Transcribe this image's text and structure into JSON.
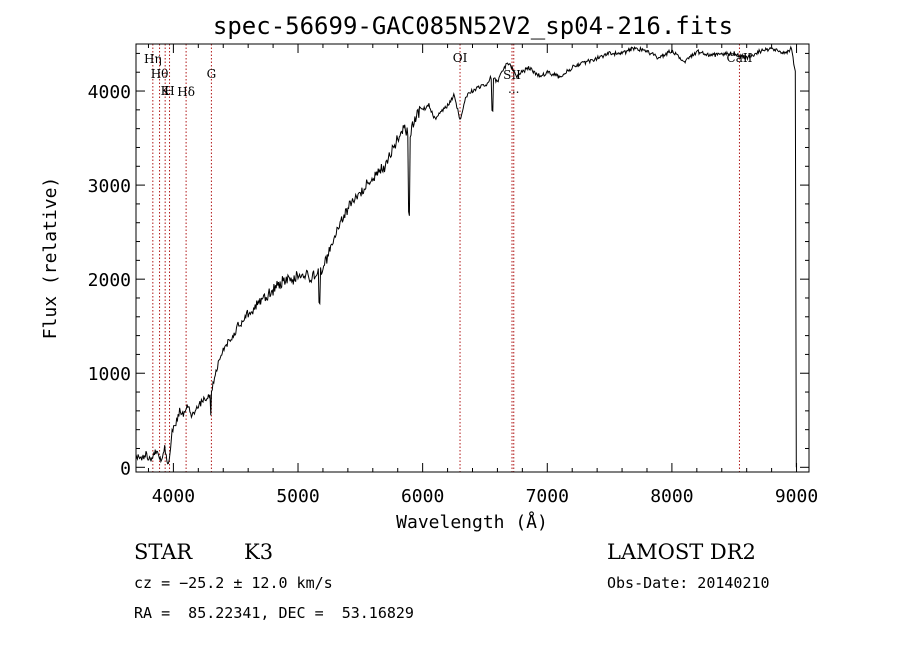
{
  "chart_data": {
    "type": "line",
    "title": "spec-56699-GAC085N52V2_sp04-216.fits",
    "xlabel": "Wavelength (Å)",
    "ylabel": "Flux (relative)",
    "xlim": [
      3700,
      9100
    ],
    "ylim": [
      -50,
      4500
    ],
    "x_ticks": [
      4000,
      5000,
      6000,
      7000,
      8000,
      9000
    ],
    "y_ticks": [
      0,
      1000,
      2000,
      3000,
      4000
    ],
    "grid": false,
    "series": [
      {
        "x": [
          3700,
          3740,
          3780,
          3820,
          3860,
          3900,
          3930,
          3960,
          3990,
          4020,
          4050,
          4080,
          4110,
          4150,
          4200,
          4250,
          4300,
          4330,
          4360,
          4400,
          4450,
          4500,
          4550,
          4600,
          4650,
          4700,
          4750,
          4800,
          4850,
          4900,
          4950,
          5000,
          5050,
          5100,
          5150,
          5200,
          5250,
          5300,
          5350,
          5400,
          5450,
          5500,
          5550,
          5600,
          5650,
          5700,
          5750,
          5800,
          5850,
          5900,
          5950,
          6000,
          6050,
          6100,
          6150,
          6200,
          6250,
          6300,
          6350,
          6400,
          6450,
          6500,
          6550,
          6600,
          6650,
          6700,
          6750,
          6800,
          6850,
          6900,
          6950,
          7000,
          7100,
          7200,
          7300,
          7400,
          7500,
          7600,
          7700,
          7800,
          7900,
          8000,
          8100,
          8200,
          8300,
          8400,
          8500,
          8600,
          8700,
          8800,
          8900,
          8960,
          8990,
          8998
        ],
        "y": [
          120,
          80,
          150,
          60,
          170,
          90,
          200,
          10,
          380,
          470,
          600,
          560,
          660,
          540,
          660,
          720,
          760,
          950,
          1100,
          1250,
          1350,
          1450,
          1550,
          1650,
          1700,
          1750,
          1820,
          1880,
          1950,
          2000,
          1980,
          2050,
          2060,
          2020,
          2050,
          2100,
          2300,
          2500,
          2650,
          2750,
          2850,
          2900,
          3000,
          3050,
          3150,
          3200,
          3350,
          3500,
          3600,
          3550,
          3750,
          3800,
          3850,
          3700,
          3780,
          3850,
          3950,
          3700,
          3950,
          4000,
          4050,
          4050,
          4150,
          4100,
          4250,
          4300,
          4150,
          4200,
          4250,
          4200,
          4150,
          4200,
          4150,
          4250,
          4300,
          4350,
          4400,
          4400,
          4460,
          4420,
          4350,
          4430,
          4300,
          4420,
          4380,
          4390,
          4400,
          4350,
          4420,
          4450,
          4400,
          4450,
          4200,
          0
        ],
        "color": "#000000"
      }
    ],
    "features": [
      {
        "wl": 3835,
        "label": "Hη"
      },
      {
        "wl": 3889,
        "label": "Hθ"
      },
      {
        "wl": 3934,
        "label": "K"
      },
      {
        "wl": 3969,
        "label": "H"
      },
      {
        "wl": 4102,
        "label": "Hδ"
      },
      {
        "wl": 4305,
        "label": "G"
      },
      {
        "wl": 6300,
        "label": "OI"
      },
      {
        "wl": 6717,
        "label": "SII"
      },
      {
        "wl": 6731,
        "label": "..."
      },
      {
        "wl": 8542,
        "label": "CaII"
      }
    ],
    "feature_color": "#b01818"
  },
  "info": {
    "class_label": "STAR",
    "subclass": "K3",
    "redshift_text": "cz = −25.2 ± 12.0 km/s",
    "coords_text": "RA =  85.22341, DEC =  53.16829",
    "survey": "LAMOST DR2",
    "obs_date": "Obs-Date: 20140210"
  }
}
